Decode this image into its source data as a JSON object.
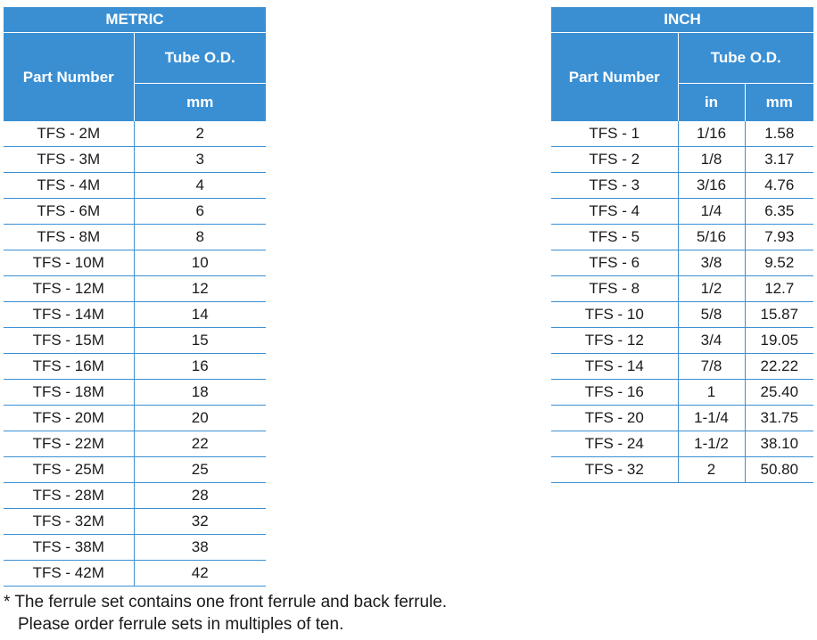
{
  "metric": {
    "title": "METRIC",
    "part_header": "Part Number",
    "od_header": "Tube O.D.",
    "unit": "mm",
    "rows": [
      {
        "part": "TFS - 2M",
        "mm": "2"
      },
      {
        "part": "TFS - 3M",
        "mm": "3"
      },
      {
        "part": "TFS - 4M",
        "mm": "4"
      },
      {
        "part": "TFS - 6M",
        "mm": "6"
      },
      {
        "part": "TFS - 8M",
        "mm": "8"
      },
      {
        "part": "TFS - 10M",
        "mm": "10"
      },
      {
        "part": "TFS - 12M",
        "mm": "12"
      },
      {
        "part": "TFS - 14M",
        "mm": "14"
      },
      {
        "part": "TFS - 15M",
        "mm": "15"
      },
      {
        "part": "TFS - 16M",
        "mm": "16"
      },
      {
        "part": "TFS - 18M",
        "mm": "18"
      },
      {
        "part": "TFS - 20M",
        "mm": "20"
      },
      {
        "part": "TFS - 22M",
        "mm": "22"
      },
      {
        "part": "TFS - 25M",
        "mm": "25"
      },
      {
        "part": "TFS - 28M",
        "mm": "28"
      },
      {
        "part": "TFS - 32M",
        "mm": "32"
      },
      {
        "part": "TFS - 38M",
        "mm": "38"
      },
      {
        "part": "TFS - 42M",
        "mm": "42"
      }
    ]
  },
  "inch": {
    "title": "INCH",
    "part_header": "Part Number",
    "od_header": "Tube O.D.",
    "unit_in": "in",
    "unit_mm": "mm",
    "rows": [
      {
        "part": "TFS - 1",
        "in": "1/16",
        "mm": "1.58"
      },
      {
        "part": "TFS - 2",
        "in": "1/8",
        "mm": "3.17"
      },
      {
        "part": "TFS - 3",
        "in": "3/16",
        "mm": "4.76"
      },
      {
        "part": "TFS - 4",
        "in": "1/4",
        "mm": "6.35"
      },
      {
        "part": "TFS - 5",
        "in": "5/16",
        "mm": "7.93"
      },
      {
        "part": "TFS - 6",
        "in": "3/8",
        "mm": "9.52"
      },
      {
        "part": "TFS - 8",
        "in": "1/2",
        "mm": "12.7"
      },
      {
        "part": "TFS - 10",
        "in": "5/8",
        "mm": "15.87"
      },
      {
        "part": "TFS - 12",
        "in": "3/4",
        "mm": "19.05"
      },
      {
        "part": "TFS - 14",
        "in": "7/8",
        "mm": "22.22"
      },
      {
        "part": "TFS - 16",
        "in": "1",
        "mm": "25.40"
      },
      {
        "part": "TFS - 20",
        "in": "1-1/4",
        "mm": "31.75"
      },
      {
        "part": "TFS - 24",
        "in": "1-1/2",
        "mm": "38.10"
      },
      {
        "part": "TFS - 32",
        "in": "2",
        "mm": "50.80"
      }
    ]
  },
  "notes": {
    "line1": "* The ferrule set contains one front ferrule and back ferrule.",
    "line2": "Please order ferrule sets in multiples of ten."
  },
  "colors": {
    "header_bg": "#3a8fd3",
    "header_text": "#ffffff",
    "rule": "#3a8fd3"
  }
}
